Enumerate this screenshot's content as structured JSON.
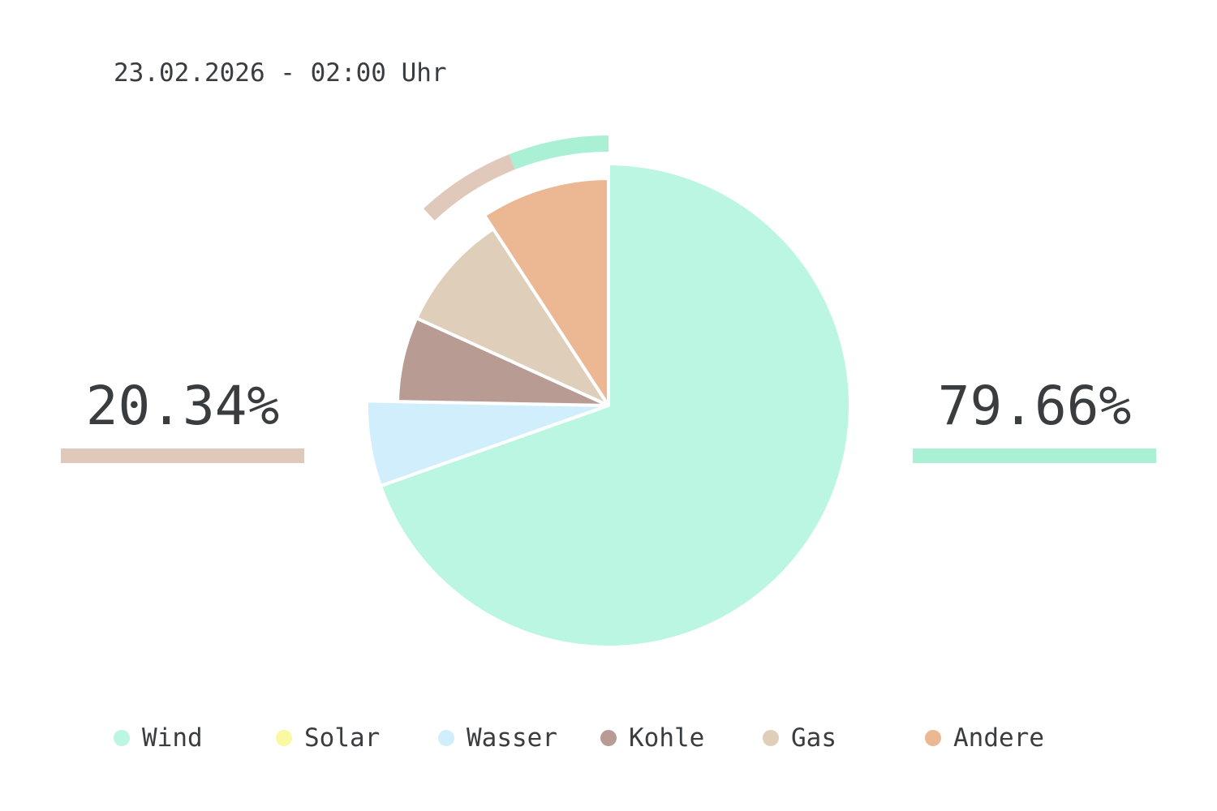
{
  "timestamp": "23.02.2026 - 02:00 Uhr",
  "summary": {
    "left": {
      "value": "20.34%",
      "color": "#e0c9bb"
    },
    "right": {
      "value": "79.66%",
      "color": "#aaf0d4"
    }
  },
  "outer_ring": [
    {
      "label": "Wind",
      "value": 6.0,
      "color": "#aaf0d4"
    },
    {
      "label": "Gas",
      "value": 6.0,
      "color": "#e0c9bb"
    }
  ],
  "chart_data": {
    "type": "pie",
    "categories": [
      "Wind",
      "Solar",
      "Wasser",
      "Kohle",
      "Gas",
      "Andere"
    ],
    "values": [
      69.6,
      0.0,
      5.7,
      6.5,
      9.0,
      9.2
    ],
    "colors": [
      "#baf6e1",
      "#f8f9a0",
      "#d0eefc",
      "#b89c93",
      "#dfcfba",
      "#ebb893"
    ],
    "legend": "bottom"
  }
}
